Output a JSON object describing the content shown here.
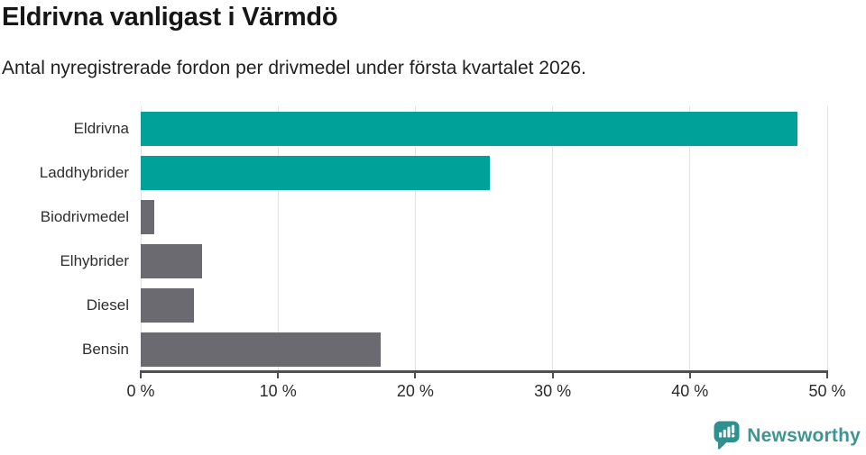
{
  "header": {
    "title": "Eldrivna vanligast i Värmdö",
    "subtitle": "Antal nyregistrerade fordon per drivmedel under första kvartalet 2026."
  },
  "chart_data": {
    "type": "bar",
    "orientation": "horizontal",
    "title": "Eldrivna vanligast i Värmdö",
    "subtitle": "Antal nyregistrerade fordon per drivmedel under första kvartalet 2026.",
    "categories": [
      "Eldrivna",
      "Laddhybrider",
      "Biodrivmedel",
      "Elhybrider",
      "Diesel",
      "Bensin"
    ],
    "values": [
      47.8,
      25.4,
      1.0,
      4.5,
      3.9,
      17.5
    ],
    "unit": "%",
    "bar_colors": [
      "#00a199",
      "#00a199",
      "#6b6a70",
      "#6b6a70",
      "#6b6a70",
      "#6b6a70"
    ],
    "xlim": [
      0,
      50
    ],
    "x_ticks": [
      0,
      10,
      20,
      30,
      40,
      50
    ],
    "x_tick_labels": [
      "0 %",
      "10 %",
      "20 %",
      "30 %",
      "40 %",
      "50 %"
    ],
    "grid": "vertical-gridlines",
    "legend": "none"
  },
  "colors": {
    "accent_teal": "#00a199",
    "neutral_gray": "#6b6a70",
    "gridline": "#e3e3e3",
    "axis": "#4e4e53",
    "brand_teal": "#3f9595",
    "logo_teal": "#2f9090"
  },
  "footer": {
    "brand": "Newsworthy",
    "logo_icon": "speech-bubble-bar-chart-icon"
  }
}
